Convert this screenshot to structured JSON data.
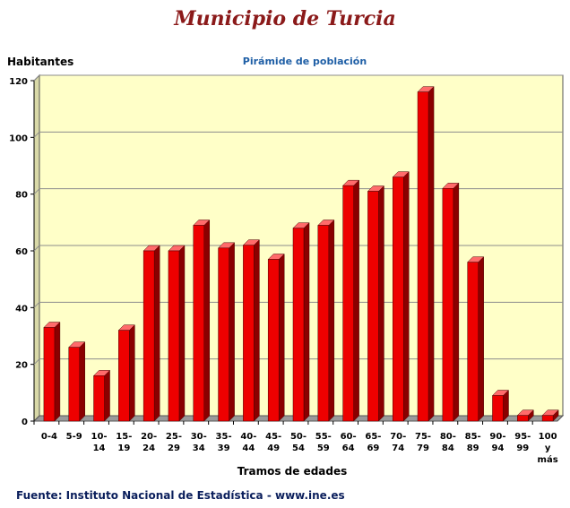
{
  "title": "Municipio de Turcia",
  "subtitle": "Pirámide de población",
  "source": "Fuente: Instituto Nacional de Estadística - www.ine.es",
  "colors": {
    "bar": "#ee0000",
    "bar_side": "#8a0000",
    "bar_top": "#ff6b6b",
    "plot_bg": "#ffffc8",
    "grid": "#8c8c8c"
  },
  "chart_data": {
    "type": "bar",
    "xlabel": "Tramos de edades",
    "ylabel": "Habitantes",
    "ylim": [
      0,
      120
    ],
    "yticks": [
      0,
      20,
      40,
      60,
      80,
      100,
      120
    ],
    "grid": true,
    "categories": [
      "0-4",
      "5-9",
      "10-14",
      "15-19",
      "20-24",
      "25-29",
      "30-34",
      "35-39",
      "40-44",
      "45-49",
      "50-54",
      "55-59",
      "60-64",
      "65-69",
      "70-74",
      "75-79",
      "80-84",
      "85-89",
      "90-94",
      "95-99",
      "100 y más"
    ],
    "category_lines": [
      [
        "0-4"
      ],
      [
        "5-9"
      ],
      [
        "10-",
        "14"
      ],
      [
        "15-",
        "19"
      ],
      [
        "20-",
        "24"
      ],
      [
        "25-",
        "29"
      ],
      [
        "30-",
        "34"
      ],
      [
        "35-",
        "39"
      ],
      [
        "40-",
        "44"
      ],
      [
        "45-",
        "49"
      ],
      [
        "50-",
        "54"
      ],
      [
        "55-",
        "59"
      ],
      [
        "60-",
        "64"
      ],
      [
        "65-",
        "69"
      ],
      [
        "70-",
        "74"
      ],
      [
        "75-",
        "79"
      ],
      [
        "80-",
        "84"
      ],
      [
        "85-",
        "89"
      ],
      [
        "90-",
        "94"
      ],
      [
        "95-",
        "99"
      ],
      [
        "100",
        "y",
        "más"
      ]
    ],
    "values": [
      33,
      26,
      16,
      32,
      60,
      60,
      69,
      61,
      62,
      57,
      68,
      69,
      83,
      81,
      86,
      116,
      82,
      56,
      9,
      2,
      2
    ]
  }
}
